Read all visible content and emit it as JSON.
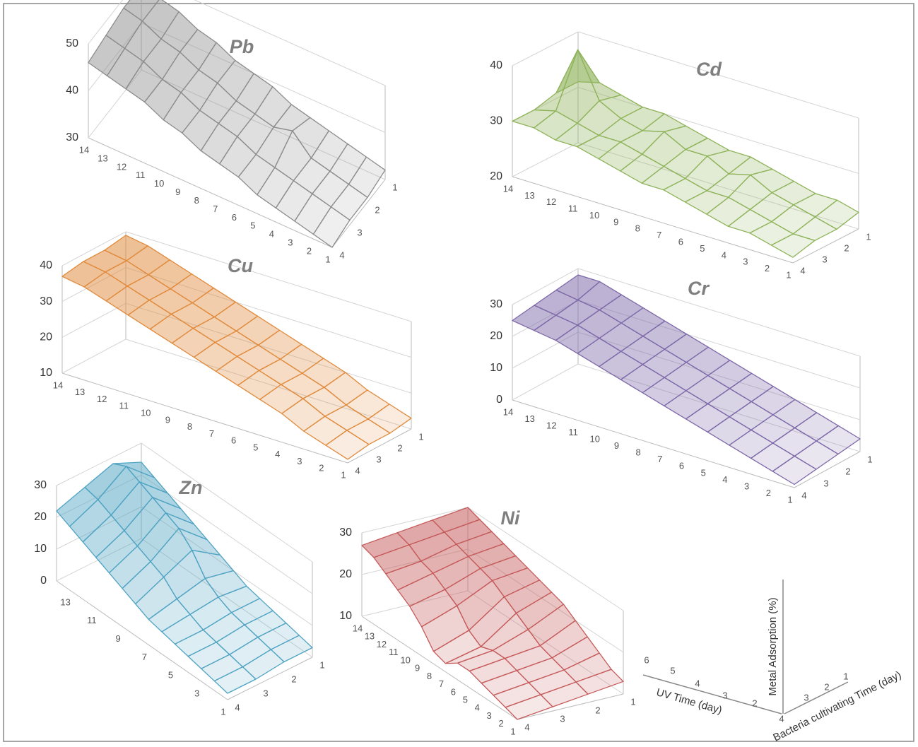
{
  "chart_data": [
    {
      "type": "surface",
      "title": "Pb",
      "color": "#8c8c8c",
      "categories": [
        14,
        13,
        12,
        11,
        10,
        9,
        8,
        7,
        6,
        5,
        4,
        3,
        2,
        1
      ],
      "depth_categories": [
        1,
        2,
        3,
        4
      ],
      "zlim": [
        30,
        50
      ],
      "zticks": [
        30,
        40,
        50
      ],
      "z": [
        [
          48,
          48,
          47,
          46
        ],
        [
          47,
          47,
          46,
          45
        ],
        [
          46,
          45,
          45,
          44
        ],
        [
          44,
          44,
          43,
          43
        ],
        [
          43,
          42,
          42,
          41
        ],
        [
          41,
          41,
          40,
          40
        ],
        [
          40,
          39,
          39,
          38
        ],
        [
          39,
          38,
          38,
          37
        ],
        [
          37,
          37,
          36,
          36
        ],
        [
          36,
          38,
          35,
          34
        ],
        [
          35,
          34,
          34,
          33
        ],
        [
          34,
          33,
          33,
          32
        ],
        [
          33,
          32,
          32,
          31
        ],
        [
          32,
          31,
          31,
          30
        ]
      ]
    },
    {
      "type": "surface",
      "title": "Cd",
      "color": "#8fb35a",
      "categories": [
        14,
        13,
        12,
        11,
        10,
        9,
        8,
        7,
        6,
        5,
        4,
        3,
        2,
        1
      ],
      "depth_categories": [
        1,
        2,
        3,
        4
      ],
      "zlim": [
        20,
        40
      ],
      "zticks": [
        20,
        30,
        40
      ],
      "z": [
        [
          31,
          31,
          30,
          30
        ],
        [
          32,
          40,
          31,
          30
        ],
        [
          31,
          32,
          30,
          29
        ],
        [
          30,
          30,
          29,
          29
        ],
        [
          30,
          29,
          29,
          28
        ],
        [
          29,
          30,
          28,
          27
        ],
        [
          28,
          28,
          27,
          26
        ],
        [
          27,
          28,
          26,
          26
        ],
        [
          27,
          26,
          25,
          25
        ],
        [
          26,
          27,
          25,
          24
        ],
        [
          25,
          25,
          24,
          23
        ],
        [
          24,
          24,
          23,
          23
        ],
        [
          24,
          23,
          22,
          22
        ],
        [
          23,
          22,
          22,
          21
        ]
      ]
    },
    {
      "type": "surface",
      "title": "Cu",
      "color": "#e08a3c",
      "categories": [
        14,
        13,
        12,
        11,
        10,
        9,
        8,
        7,
        6,
        5,
        4,
        3,
        2,
        1
      ],
      "depth_categories": [
        1,
        2,
        3,
        4
      ],
      "zlim": [
        10,
        40
      ],
      "zticks": [
        10,
        20,
        30,
        40
      ],
      "z": [
        [
          39,
          38,
          38,
          37
        ],
        [
          38,
          37,
          37,
          36
        ],
        [
          36,
          35,
          35,
          34
        ],
        [
          34,
          33,
          33,
          32
        ],
        [
          32,
          31,
          31,
          30
        ],
        [
          30,
          29,
          29,
          28
        ],
        [
          28,
          27,
          27,
          26
        ],
        [
          26,
          25,
          25,
          24
        ],
        [
          24,
          23,
          23,
          22
        ],
        [
          22,
          21,
          21,
          20
        ],
        [
          20,
          19,
          19,
          18
        ],
        [
          17,
          16,
          16,
          15
        ],
        [
          15,
          14,
          14,
          13
        ],
        [
          13,
          12,
          12,
          11
        ]
      ]
    },
    {
      "type": "surface",
      "title": "Cr",
      "color": "#7d68a8",
      "categories": [
        14,
        13,
        12,
        11,
        10,
        9,
        8,
        7,
        6,
        5,
        4,
        3,
        2,
        1
      ],
      "depth_categories": [
        1,
        2,
        3,
        4
      ],
      "zlim": [
        0,
        30
      ],
      "zticks": [
        0,
        10,
        20,
        30
      ],
      "z": [
        [
          28,
          27,
          26,
          25
        ],
        [
          28,
          26,
          25,
          24
        ],
        [
          26,
          25,
          24,
          23
        ],
        [
          24,
          23,
          22,
          21
        ],
        [
          22,
          21,
          20,
          19
        ],
        [
          20,
          19,
          18,
          17
        ],
        [
          18,
          17,
          16,
          15
        ],
        [
          16,
          15,
          14,
          13
        ],
        [
          14,
          13,
          12,
          11
        ],
        [
          12,
          11,
          10,
          9
        ],
        [
          10,
          9,
          8,
          7
        ],
        [
          8,
          7,
          6,
          5
        ],
        [
          6,
          5,
          4,
          3
        ],
        [
          4,
          3,
          2,
          1
        ]
      ]
    },
    {
      "type": "surface",
      "title": "Zn",
      "color": "#4fa3c2",
      "categories": [
        null,
        13,
        null,
        11,
        null,
        9,
        null,
        7,
        null,
        5,
        null,
        3,
        null,
        1
      ],
      "depth_categories": [
        1,
        2,
        3,
        4
      ],
      "zlim": [
        0,
        30
      ],
      "zticks": [
        0,
        10,
        20,
        30
      ],
      "z": [
        [
          24,
          28,
          25,
          22
        ],
        [
          22,
          30,
          24,
          20
        ],
        [
          20,
          28,
          22,
          18
        ],
        [
          18,
          26,
          20,
          16
        ],
        [
          16,
          24,
          18,
          14
        ],
        [
          14,
          22,
          16,
          12
        ],
        [
          12,
          18,
          14,
          10
        ],
        [
          10,
          12,
          10,
          8
        ],
        [
          8,
          9,
          8,
          7
        ],
        [
          7,
          7,
          6,
          6
        ],
        [
          6,
          6,
          5,
          5
        ],
        [
          5,
          5,
          4,
          4
        ],
        [
          4,
          4,
          3,
          3
        ],
        [
          3,
          3,
          2,
          2
        ]
      ]
    },
    {
      "type": "surface",
      "title": "Ni",
      "color": "#c55a5a",
      "categories": [
        14,
        13,
        12,
        11,
        10,
        9,
        8,
        7,
        6,
        5,
        4,
        3,
        2,
        1
      ],
      "depth_categories": [
        1,
        2,
        3,
        4
      ],
      "zlim": [
        10,
        30
      ],
      "zticks": [
        10,
        20,
        30
      ],
      "z": [
        [
          30,
          29,
          28,
          27
        ],
        [
          29,
          28,
          27,
          26
        ],
        [
          28,
          27,
          25,
          24
        ],
        [
          27,
          26,
          24,
          22
        ],
        [
          26,
          25,
          22,
          20
        ],
        [
          25,
          24,
          20,
          17
        ],
        [
          24,
          22,
          16,
          13
        ],
        [
          23,
          20,
          14,
          12
        ],
        [
          22,
          18,
          15,
          14
        ],
        [
          20,
          16,
          15,
          14
        ],
        [
          18,
          15,
          14,
          13
        ],
        [
          16,
          14,
          13,
          12
        ],
        [
          14,
          13,
          12,
          11
        ],
        [
          13,
          12,
          11,
          10
        ]
      ]
    }
  ],
  "legend_key": {
    "z_label": "Metal Adsorption (%)",
    "x_label": "UV Time (day)",
    "y_label": "Bacteria cultivating Time (day)",
    "x_ticks": [
      6,
      5,
      4,
      3,
      2
    ],
    "y_ticks": [
      1,
      2,
      3,
      4
    ]
  }
}
